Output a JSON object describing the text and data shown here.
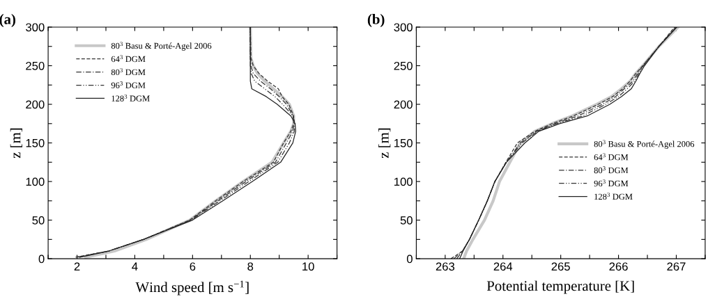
{
  "chart_data": [
    {
      "type": "line",
      "title": "(a)",
      "xlabel": "Wind speed [m s$^{−1}$]",
      "ylabel": "z [m]",
      "xlim": [
        1,
        11
      ],
      "ylim": [
        0,
        300
      ],
      "xticks": [
        {
          "value": 1,
          "label": null
        },
        2,
        {
          "value": 3,
          "label": null
        },
        4,
        {
          "value": 5,
          "label": null
        },
        6,
        {
          "value": 7,
          "label": null
        },
        8,
        {
          "value": 9,
          "label": null
        },
        10,
        {
          "value": 11,
          "label": null
        }
      ],
      "yticks": [
        0,
        {
          "value": 25,
          "label": null
        },
        50,
        {
          "value": 75,
          "label": null
        },
        100,
        {
          "value": 125,
          "label": null
        },
        150,
        {
          "value": 175,
          "label": null
        },
        200,
        {
          "value": 225,
          "label": null
        },
        250,
        {
          "value": 275,
          "label": null
        },
        300
      ],
      "grid": false,
      "legend": "top left",
      "marker": "none",
      "series": [
        {
          "name": "80$^{3}$ Basu & Porté-Agel 2006",
          "color": "#c8c8c8",
          "line_style": "solid",
          "x": [
            2.3,
            3.3,
            4.4,
            5.9,
            6.8,
            7.75,
            8.75,
            9.15,
            9.4,
            9.5,
            9.5,
            9.35,
            9.1,
            8.8,
            8.5,
            8.25,
            8.1,
            8.02,
            8.0
          ],
          "values": [
            2,
            10,
            25,
            50,
            75,
            100,
            125,
            150,
            165,
            175,
            185,
            200,
            210,
            220,
            230,
            240,
            250,
            260,
            300
          ]
        },
        {
          "name": "64$^{3}$ DGM",
          "color": "#333333",
          "line_style": "dashed",
          "x": [
            1.95,
            3.1,
            4.3,
            5.9,
            6.8,
            7.75,
            8.8,
            9.15,
            9.4,
            9.5,
            9.5,
            9.33,
            9.1,
            8.97,
            8.6,
            8.3,
            8.1,
            8.02,
            8.0
          ],
          "values": [
            2,
            10,
            25,
            50,
            75,
            100,
            125,
            150,
            165,
            175,
            185,
            200,
            210,
            220,
            230,
            240,
            250,
            260,
            300
          ]
        },
        {
          "name": "80$^{3}$ DGM",
          "color": "#333333",
          "line_style": "dashdot",
          "x": [
            2.0,
            3.1,
            4.3,
            5.92,
            6.88,
            7.85,
            8.87,
            9.25,
            9.47,
            9.52,
            9.48,
            9.25,
            9.0,
            8.7,
            8.35,
            8.1,
            8.02,
            8.0,
            8.0
          ],
          "values": [
            2,
            10,
            25,
            50,
            75,
            100,
            125,
            150,
            165,
            175,
            185,
            200,
            210,
            220,
            230,
            240,
            250,
            260,
            300
          ]
        },
        {
          "name": "96$^{3}$ DGM",
          "color": "#333333",
          "line_style": "dashdotdot",
          "x": [
            2.05,
            3.1,
            4.3,
            5.95,
            6.95,
            7.95,
            8.95,
            9.35,
            9.52,
            9.55,
            9.47,
            9.12,
            8.85,
            8.5,
            8.15,
            8.03,
            8.0,
            8.0,
            8.0
          ],
          "values": [
            2,
            10,
            25,
            50,
            75,
            100,
            125,
            150,
            165,
            175,
            185,
            200,
            210,
            220,
            230,
            240,
            250,
            260,
            300
          ]
        },
        {
          "name": "128$^{3}$ DGM",
          "color": "#222222",
          "line_style": "solid",
          "x": [
            2.1,
            3.1,
            4.3,
            6.0,
            7.05,
            8.07,
            9.05,
            9.47,
            9.57,
            9.55,
            9.4,
            8.93,
            8.55,
            8.05,
            8.0,
            8.0,
            8.0,
            8.0,
            8.0
          ],
          "values": [
            2,
            10,
            25,
            50,
            75,
            100,
            125,
            150,
            165,
            175,
            185,
            200,
            210,
            220,
            230,
            240,
            250,
            260,
            300
          ]
        }
      ]
    },
    {
      "type": "line",
      "title": "(b)",
      "xlabel": "Potential temperature [K]",
      "ylabel": "z [m]",
      "xlim": [
        262.5,
        267.5
      ],
      "ylim": [
        0,
        300
      ],
      "xticks": [
        {
          "value": 262.5,
          "label": null
        },
        263,
        {
          "value": 263.5,
          "label": null
        },
        264,
        {
          "value": 264.5,
          "label": null
        },
        265,
        {
          "value": 265.5,
          "label": null
        },
        266,
        {
          "value": 266.5,
          "label": null
        },
        267,
        {
          "value": 267.5,
          "label": null
        }
      ],
      "yticks": [
        0,
        {
          "value": 25,
          "label": null
        },
        50,
        {
          "value": 75,
          "label": null
        },
        100,
        {
          "value": 125,
          "label": null
        },
        150,
        {
          "value": 175,
          "label": null
        },
        200,
        {
          "value": 225,
          "label": null
        },
        250,
        {
          "value": 275,
          "label": null
        },
        300
      ],
      "grid": false,
      "legend": "center right",
      "marker": "none",
      "series": [
        {
          "name": "80$^{3}$ Basu & Porté-Agel 2006",
          "color": "#c8c8c8",
          "line_style": "solid",
          "x": [
            263.32,
            263.37,
            263.48,
            263.68,
            263.83,
            263.94,
            264.12,
            264.3,
            264.55,
            264.85,
            265.2,
            265.62,
            265.88,
            266.05,
            266.2,
            266.3,
            266.42,
            266.7,
            267.03
          ],
          "values": [
            0,
            10,
            25,
            50,
            75,
            100,
            125,
            150,
            165,
            175,
            185,
            200,
            210,
            220,
            230,
            240,
            250,
            275,
            300
          ]
        },
        {
          "name": "64$^{3}$ DGM",
          "color": "#333333",
          "line_style": "dashed",
          "x": [
            263.1,
            263.3,
            263.42,
            263.58,
            263.73,
            263.86,
            264.05,
            264.25,
            264.55,
            264.85,
            265.22,
            265.65,
            265.9,
            266.07,
            266.2,
            266.3,
            266.42,
            266.7,
            266.97
          ],
          "values": [
            0,
            10,
            25,
            50,
            75,
            100,
            125,
            150,
            165,
            175,
            185,
            200,
            210,
            220,
            230,
            240,
            250,
            275,
            300
          ]
        },
        {
          "name": "80$^{3}$ DGM",
          "color": "#333333",
          "line_style": "dashdot",
          "x": [
            263.15,
            263.3,
            263.42,
            263.58,
            263.73,
            263.86,
            264.06,
            264.3,
            264.58,
            264.9,
            265.3,
            265.72,
            265.95,
            266.1,
            266.25,
            266.33,
            266.42,
            266.7,
            267.0
          ],
          "values": [
            0,
            10,
            25,
            50,
            75,
            100,
            125,
            150,
            165,
            175,
            185,
            200,
            210,
            220,
            230,
            240,
            250,
            275,
            300
          ]
        },
        {
          "name": "96$^{3}$ DGM",
          "color": "#333333",
          "line_style": "dashdotdot",
          "x": [
            263.2,
            263.3,
            263.42,
            263.58,
            263.73,
            263.86,
            264.06,
            264.33,
            264.6,
            264.93,
            265.38,
            265.78,
            266.0,
            266.15,
            266.28,
            266.35,
            266.43,
            266.7,
            266.99
          ],
          "values": [
            0,
            10,
            25,
            50,
            75,
            100,
            125,
            150,
            165,
            175,
            185,
            200,
            210,
            220,
            230,
            240,
            250,
            275,
            300
          ]
        },
        {
          "name": "128$^{3}$ DGM",
          "color": "#222222",
          "line_style": "solid",
          "x": [
            263.25,
            263.31,
            263.42,
            263.58,
            263.73,
            263.86,
            264.06,
            264.38,
            264.62,
            264.98,
            265.46,
            265.85,
            266.05,
            266.22,
            266.3,
            266.37,
            266.45,
            266.7,
            267.01
          ],
          "values": [
            0,
            10,
            25,
            50,
            75,
            100,
            125,
            150,
            165,
            175,
            185,
            200,
            210,
            220,
            230,
            240,
            250,
            275,
            300
          ]
        }
      ]
    }
  ]
}
